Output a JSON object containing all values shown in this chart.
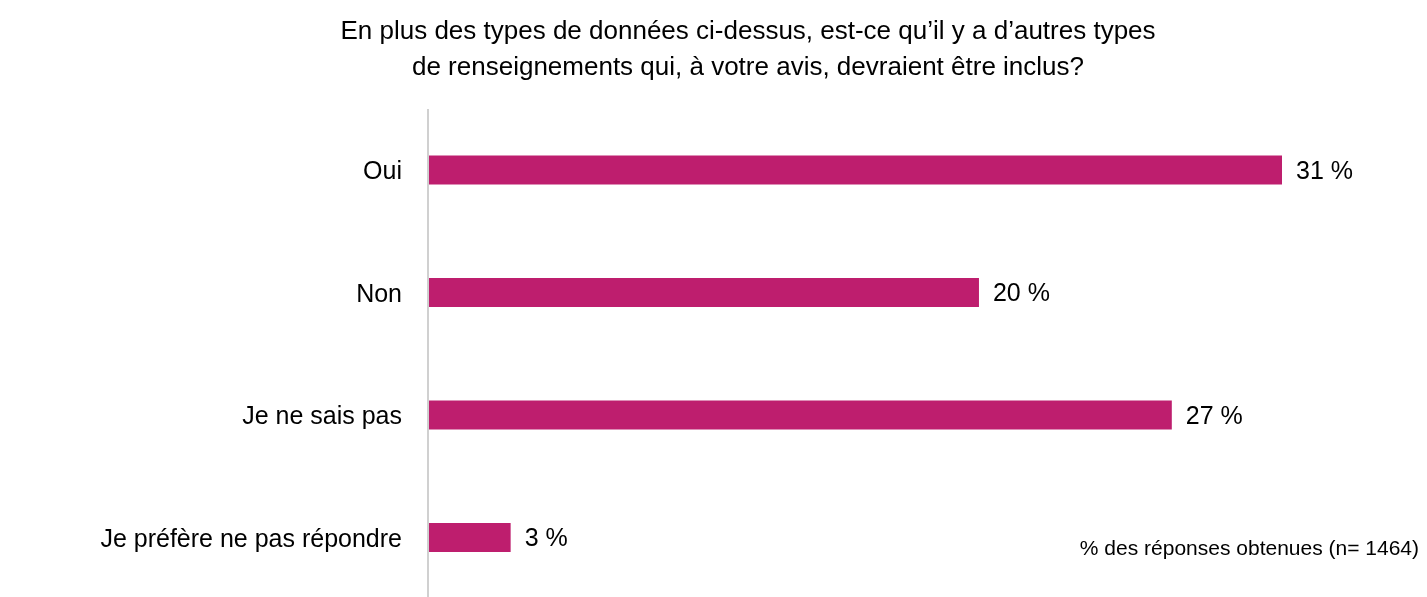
{
  "chart_data": {
    "type": "bar",
    "orientation": "horizontal",
    "title": "En plus des types de données ci-dessus, est-ce qu’il y a d’autres types\nde renseignements qui, à votre avis, devraient être inclus?",
    "categories": [
      "Oui",
      "Non",
      "Je ne sais pas",
      "Je préfère ne pas répondre"
    ],
    "values": [
      31,
      20,
      27,
      3
    ],
    "value_labels": [
      "31 %",
      "20 %",
      "27 %",
      "3 %"
    ],
    "color": "#be1e6e",
    "annotations": [
      "% des réponses obtenues (n= 1464)"
    ],
    "grid": false,
    "legend": false
  }
}
